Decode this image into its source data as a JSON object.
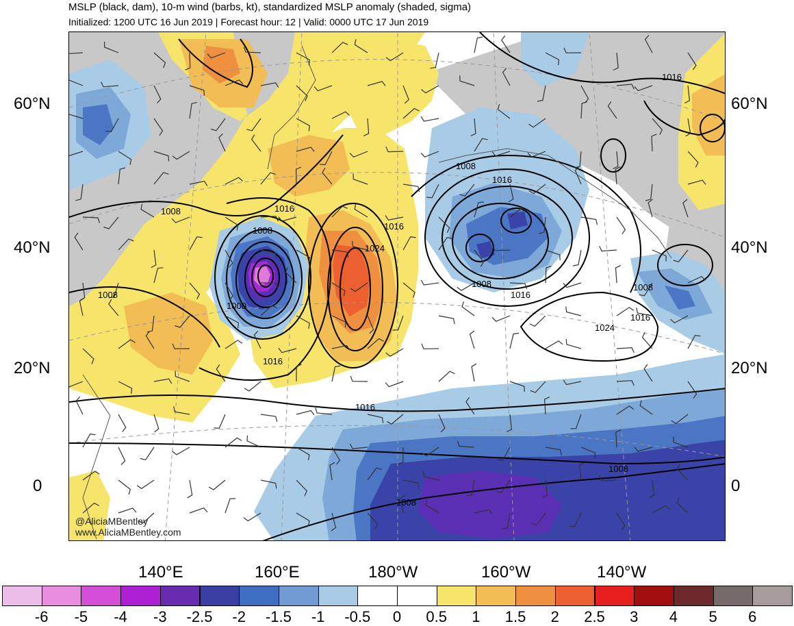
{
  "header": {
    "title": "MSLP (black, dam), 10-m wind (barbs, kt), standardized MSLP anomaly (shaded, sigma)",
    "subtitle": "Initialized: 1200 UTC 16 Jun 2019 | Forecast hour: 12 | Valid: 0000 UTC 17 Jun 2019"
  },
  "map": {
    "lat_labels": [
      "60°N",
      "40°N",
      "20°N",
      "0"
    ],
    "lon_labels": [
      "140°E",
      "160°E",
      "180°W",
      "160°W",
      "140°W"
    ],
    "contour_labels": [
      "1016",
      "1008",
      "1016",
      "1008",
      "1016",
      "1024",
      "1008",
      "1016",
      "1008",
      "1000",
      "1016",
      "1008",
      "1016",
      "1024",
      "1008",
      "1016",
      "1016",
      "1008",
      "1008"
    ],
    "credit_handle": "@AliciaMBentley",
    "credit_site": "www.AliciaMBentley.com",
    "colors": {
      "ocean_neutral": "#ffffff",
      "land_neutral": "#c8c8c8",
      "pos_05": "#f7e56b",
      "pos_10": "#f2bd55",
      "pos_15": "#ef9040",
      "pos_20": "#ec5f30",
      "neg_05": "#a8cbe6",
      "neg_10": "#7ea8d8",
      "neg_15": "#4b76c4",
      "neg_20": "#3a44a8",
      "neg_25": "#5a2fb3",
      "neg_30": "#a12cd2",
      "neg_40": "#e07ad8"
    }
  },
  "colorbar": {
    "ticks": [
      "-6",
      "-5",
      "-4",
      "-3",
      "-2.5",
      "-2",
      "-1.5",
      "-1",
      "-0.5",
      "0",
      "0.5",
      "1",
      "1.5",
      "2",
      "2.5",
      "3",
      "4",
      "5",
      "6"
    ],
    "colors": [
      "#ecbde8",
      "#e88ce0",
      "#d54ed8",
      "#ad20d4",
      "#6a2cae",
      "#3a3fa3",
      "#3e6ec0",
      "#709bd3",
      "#a8cbe6",
      "#ffffff",
      "#ffffff",
      "#f7e56b",
      "#f2bd55",
      "#ef9040",
      "#ec5f30",
      "#e61e1e",
      "#a10f0f",
      "#6e2a2a",
      "#766a6a",
      "#a89b9b"
    ]
  }
}
